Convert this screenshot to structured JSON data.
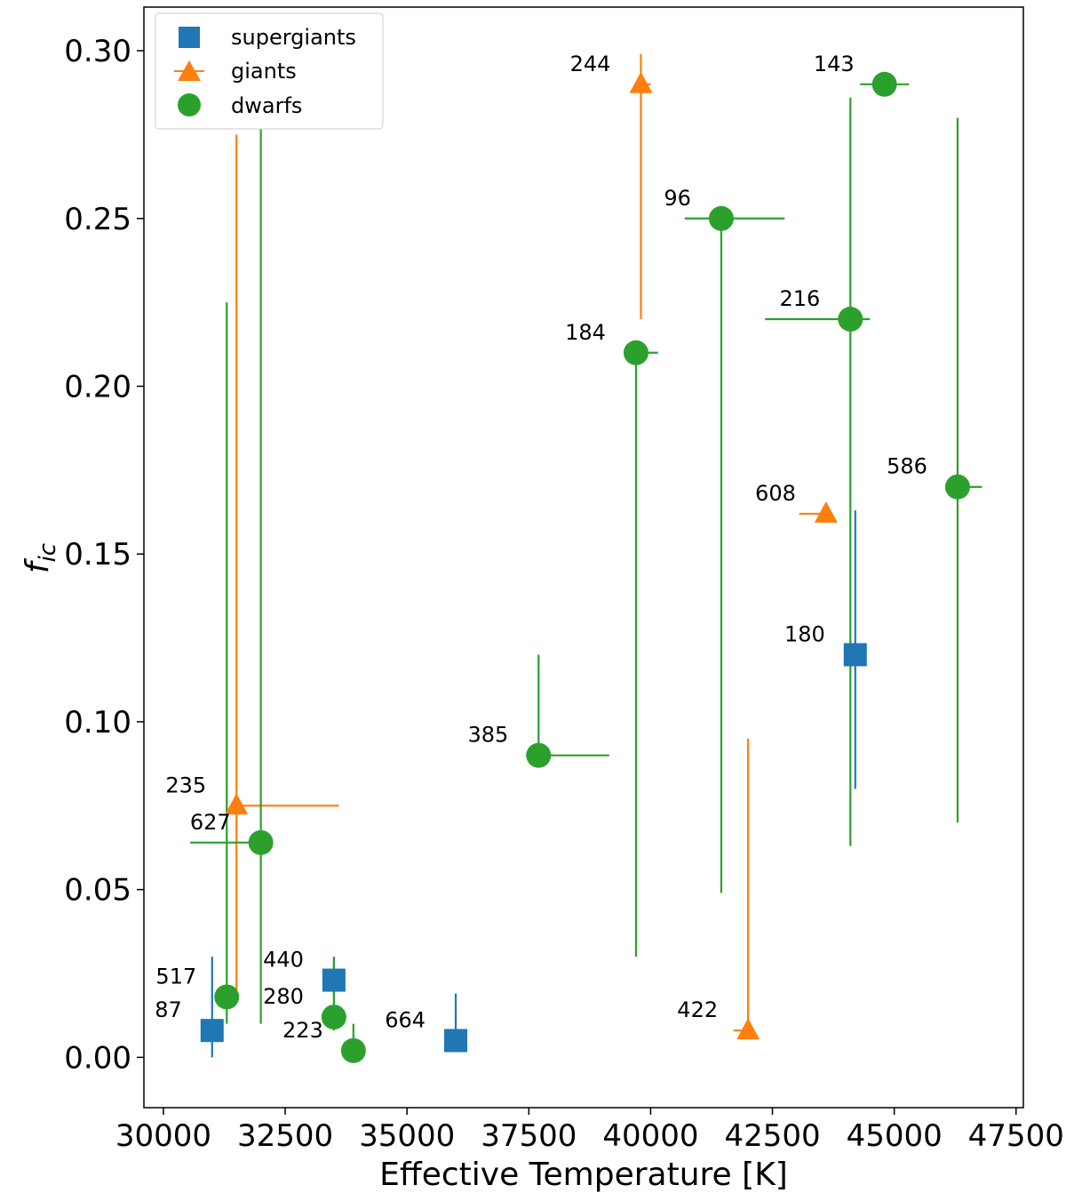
{
  "chart_data": {
    "type": "scatter",
    "title": "",
    "xlabel": "Effective Temperature [K]",
    "ylabel_main": "f",
    "ylabel_sub": "ic",
    "xlim": [
      29600,
      47650
    ],
    "ylim": [
      -0.015,
      0.313
    ],
    "xticks": [
      30000,
      32500,
      35000,
      37500,
      40000,
      42500,
      45000,
      47500
    ],
    "xtick_labels": [
      "30000",
      "32500",
      "35000",
      "37500",
      "40000",
      "42500",
      "45000",
      "47500"
    ],
    "yticks": [
      0.0,
      0.05,
      0.1,
      0.15,
      0.2,
      0.25,
      0.3
    ],
    "ytick_labels": [
      "0.00",
      "0.05",
      "0.10",
      "0.15",
      "0.20",
      "0.25",
      "0.30"
    ],
    "legend_position": "top-left",
    "colors": {
      "supergiants": "#1f77b4",
      "giants": "#ff7f0e",
      "dwarfs": "#2ca02c"
    },
    "series": [
      {
        "name": "supergiants",
        "marker": "square",
        "points": [
          {
            "label": "87",
            "x": 31000,
            "y": 0.008,
            "xerr": [
              0,
              0
            ],
            "yerr": [
              0.008,
              0.022
            ]
          },
          {
            "label": "440",
            "x": 33500,
            "y": 0.023,
            "xerr": [
              0,
              0
            ],
            "yerr": [
              0.005,
              0.006
            ]
          },
          {
            "label": "664",
            "x": 36000,
            "y": 0.005,
            "xerr": [
              200,
              0
            ],
            "yerr": [
              0,
              0.014
            ]
          },
          {
            "label": "180",
            "x": 44200,
            "y": 0.12,
            "xerr": [
              0,
              0
            ],
            "yerr": [
              0.04,
              0.043
            ]
          }
        ]
      },
      {
        "name": "giants",
        "marker": "triangle",
        "points": [
          {
            "label": "235",
            "x": 31500,
            "y": 0.075,
            "xerr": [
              0,
              2100
            ],
            "yerr": [
              0.055,
              0.2
            ]
          },
          {
            "label": "244",
            "x": 39800,
            "y": 0.29,
            "xerr": [
              0,
              200
            ],
            "yerr": [
              0.07,
              0.009
            ]
          },
          {
            "label": "608",
            "x": 43600,
            "y": 0.162,
            "xerr": [
              550,
              0
            ],
            "yerr": [
              0,
              0
            ]
          },
          {
            "label": "422",
            "x": 42000,
            "y": 0.008,
            "xerr": [
              300,
              0
            ],
            "yerr": [
              0,
              0.087
            ]
          }
        ]
      },
      {
        "name": "dwarfs",
        "marker": "circle",
        "points": [
          {
            "label": "517",
            "x": 31300,
            "y": 0.018,
            "xerr": [
              0,
              0
            ],
            "yerr": [
              0.008,
              0.207
            ]
          },
          {
            "label": "627",
            "x": 32000,
            "y": 0.064,
            "xerr": [
              1450,
              0
            ],
            "yerr": [
              0.054,
              0.236
            ]
          },
          {
            "label": "280",
            "x": 33500,
            "y": 0.012,
            "xerr": [
              200,
              0
            ],
            "yerr": [
              0.004,
              0.018
            ]
          },
          {
            "label": "223",
            "x": 33900,
            "y": 0.002,
            "xerr": [
              0,
              0
            ],
            "yerr": [
              0,
              0.008
            ]
          },
          {
            "label": "385",
            "x": 37700,
            "y": 0.09,
            "xerr": [
              0,
              1450
            ],
            "yerr": [
              0,
              0.03
            ]
          },
          {
            "label": "184",
            "x": 39700,
            "y": 0.21,
            "xerr": [
              0,
              450
            ],
            "yerr": [
              0.18,
              0
            ]
          },
          {
            "label": "96",
            "x": 41450,
            "y": 0.25,
            "xerr": [
              750,
              1300
            ],
            "yerr": [
              0.201,
              0
            ]
          },
          {
            "label": "216",
            "x": 44100,
            "y": 0.22,
            "xerr": [
              1750,
              400
            ],
            "yerr": [
              0.157,
              0.066
            ]
          },
          {
            "label": "143",
            "x": 44800,
            "y": 0.29,
            "xerr": [
              500,
              500
            ],
            "yerr": [
              0,
              0
            ]
          },
          {
            "label": "586",
            "x": 46300,
            "y": 0.17,
            "xerr": [
              0,
              500
            ],
            "yerr": [
              0.1,
              0.11
            ]
          }
        ]
      }
    ]
  }
}
